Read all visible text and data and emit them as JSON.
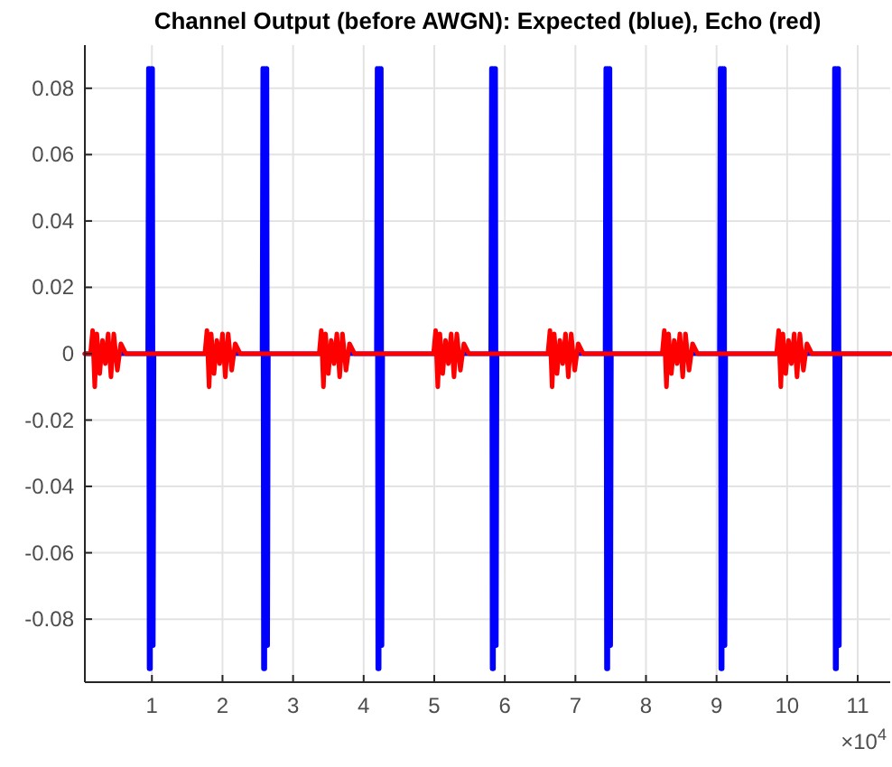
{
  "chart_data": {
    "type": "line",
    "title": "Channel Output (before AWGN): Expected (blue), Echo (red)",
    "xlim": [
      0.05,
      11.46
    ],
    "xticks": [
      1,
      2,
      3,
      4,
      5,
      6,
      7,
      8,
      9,
      10,
      11
    ],
    "ylim": [
      -0.099,
      0.093
    ],
    "yticks": [
      -0.08,
      -0.06,
      -0.04,
      -0.02,
      0,
      0.02,
      0.04,
      0.06,
      0.08
    ],
    "grid": true,
    "annotations": [
      "×10$^{4}$"
    ],
    "series": [
      {
        "color": "#0000ff",
        "x": [
          0.05,
          0.94,
          0.95,
          0.96,
          0.97,
          0.98,
          0.99,
          1.0,
          1.01,
          1.02,
          1.03,
          2.56,
          2.57,
          2.58,
          2.59,
          2.6,
          2.61,
          2.62,
          2.63,
          2.64,
          2.65,
          4.18,
          4.19,
          4.2,
          4.21,
          4.22,
          4.23,
          4.24,
          4.25,
          4.26,
          4.27,
          5.8,
          5.81,
          5.82,
          5.83,
          5.84,
          5.85,
          5.86,
          5.87,
          5.88,
          5.89,
          7.42,
          7.43,
          7.44,
          7.45,
          7.46,
          7.47,
          7.48,
          7.49,
          7.5,
          7.51,
          9.04,
          9.05,
          9.06,
          9.07,
          9.08,
          9.09,
          9.1,
          9.11,
          9.12,
          9.13,
          10.66,
          10.67,
          10.68,
          10.69,
          10.7,
          10.71,
          10.72,
          10.73,
          10.74,
          10.75,
          11.46
        ],
        "values": [
          0,
          0,
          0.086,
          -0.095,
          0.086,
          -0.095,
          0.086,
          -0.088,
          0.086,
          -0.088,
          0,
          0,
          0.086,
          -0.095,
          0.086,
          -0.095,
          0.086,
          -0.088,
          0.086,
          -0.088,
          0,
          0,
          0.086,
          -0.095,
          0.086,
          -0.095,
          0.086,
          -0.088,
          0.086,
          -0.088,
          0,
          0,
          0.086,
          -0.095,
          0.086,
          -0.095,
          0.086,
          -0.088,
          0.086,
          -0.088,
          0,
          0,
          0.086,
          -0.095,
          0.086,
          -0.095,
          0.086,
          -0.088,
          0.086,
          -0.088,
          0,
          0,
          0.086,
          -0.095,
          0.086,
          -0.095,
          0.086,
          -0.088,
          0.086,
          -0.088,
          0,
          0,
          0.086,
          -0.095,
          0.086,
          -0.095,
          0.086,
          -0.088,
          0.086,
          -0.088,
          0,
          0
        ]
      },
      {
        "color": "#ff0000",
        "x": [
          0.05,
          0.13,
          0.16,
          0.19,
          0.22,
          0.26,
          0.3,
          0.34,
          0.38,
          0.42,
          0.46,
          0.51,
          0.56,
          0.63,
          1.75,
          1.78,
          1.81,
          1.84,
          1.88,
          1.92,
          1.96,
          2.0,
          2.04,
          2.08,
          2.13,
          2.18,
          2.25,
          3.37,
          3.4,
          3.43,
          3.46,
          3.5,
          3.54,
          3.58,
          3.62,
          3.66,
          3.7,
          3.75,
          3.8,
          3.87,
          4.99,
          5.02,
          5.05,
          5.08,
          5.12,
          5.16,
          5.2,
          5.24,
          5.28,
          5.32,
          5.37,
          5.42,
          5.49,
          6.61,
          6.64,
          6.67,
          6.7,
          6.74,
          6.78,
          6.82,
          6.86,
          6.9,
          6.94,
          6.99,
          7.04,
          7.11,
          8.23,
          8.26,
          8.29,
          8.32,
          8.36,
          8.4,
          8.44,
          8.48,
          8.52,
          8.56,
          8.61,
          8.66,
          8.73,
          9.85,
          9.88,
          9.91,
          9.94,
          9.98,
          10.02,
          10.06,
          10.1,
          10.14,
          10.18,
          10.23,
          10.28,
          10.35,
          11.46
        ],
        "values": [
          0,
          0,
          0.007,
          -0.01,
          0.006,
          -0.006,
          0.004,
          -0.003,
          0.006,
          -0.007,
          0.006,
          -0.005,
          0.003,
          0,
          0,
          0.007,
          -0.01,
          0.006,
          -0.006,
          0.004,
          -0.003,
          0.006,
          -0.007,
          0.006,
          -0.005,
          0.003,
          0,
          0,
          0.007,
          -0.01,
          0.006,
          -0.006,
          0.004,
          -0.003,
          0.006,
          -0.007,
          0.006,
          -0.005,
          0.003,
          0,
          0,
          0.007,
          -0.01,
          0.006,
          -0.006,
          0.004,
          -0.003,
          0.006,
          -0.007,
          0.006,
          -0.005,
          0.003,
          0,
          0,
          0.007,
          -0.01,
          0.006,
          -0.006,
          0.004,
          -0.003,
          0.006,
          -0.007,
          0.006,
          -0.005,
          0.003,
          0,
          0,
          0.007,
          -0.01,
          0.006,
          -0.006,
          0.004,
          -0.003,
          0.006,
          -0.007,
          0.006,
          -0.005,
          0.003,
          0,
          0,
          0.007,
          -0.01,
          0.006,
          -0.006,
          0.004,
          -0.003,
          0.006,
          -0.007,
          0.006,
          -0.005,
          0.003,
          0,
          0
        ]
      }
    ]
  }
}
